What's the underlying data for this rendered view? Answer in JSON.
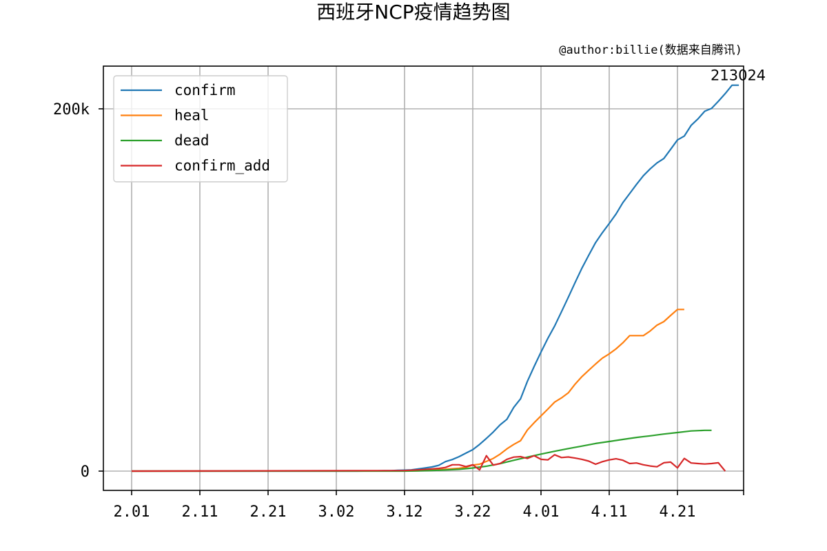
{
  "chart_data": {
    "type": "line",
    "title": "西班牙NCP疫情趋势图",
    "subtitle": "@author:billie(数据来自腾讯)",
    "xlabel": "",
    "ylabel": "",
    "x_start": "2.01",
    "x_tick_labels": [
      "2.01",
      "2.11",
      "2.21",
      "3.02",
      "3.12",
      "3.22",
      "4.01",
      "4.11",
      "4.21"
    ],
    "y_ticks": [
      {
        "value": 0,
        "label": "0"
      },
      {
        "value": 200000,
        "label": "200k"
      }
    ],
    "ylim": [
      -10650,
      223700
    ],
    "grid": true,
    "legend_position": "top-left",
    "annotation": {
      "text": "213024",
      "value": 213024
    },
    "series": [
      {
        "name": "confirm",
        "color": "#1f77b4",
        "points": [
          [
            0,
            0
          ],
          [
            33,
            0
          ],
          [
            35,
            84
          ],
          [
            36,
            165
          ],
          [
            37,
            228
          ],
          [
            38,
            282
          ],
          [
            39,
            401
          ],
          [
            40,
            525
          ],
          [
            41,
            674
          ],
          [
            42,
            1231
          ],
          [
            43,
            1695
          ],
          [
            44,
            2277
          ],
          [
            45,
            3146
          ],
          [
            46,
            5232
          ],
          [
            47,
            6391
          ],
          [
            48,
            7988
          ],
          [
            49,
            9942
          ],
          [
            50,
            11826
          ],
          [
            51,
            14769
          ],
          [
            52,
            18077
          ],
          [
            53,
            21571
          ],
          [
            54,
            25496
          ],
          [
            55,
            28603
          ],
          [
            56,
            35136
          ],
          [
            57,
            39885
          ],
          [
            58,
            49515
          ],
          [
            59,
            57786
          ],
          [
            60,
            65719
          ],
          [
            61,
            73235
          ],
          [
            62,
            80110
          ],
          [
            63,
            87956
          ],
          [
            64,
            95923
          ],
          [
            65,
            104118
          ],
          [
            66,
            112065
          ],
          [
            67,
            119199
          ],
          [
            68,
            126168
          ],
          [
            69,
            131646
          ],
          [
            70,
            136675
          ],
          [
            71,
            141942
          ],
          [
            72,
            148220
          ],
          [
            73,
            153222
          ],
          [
            74,
            158273
          ],
          [
            75,
            163027
          ],
          [
            76,
            166831
          ],
          [
            77,
            170099
          ],
          [
            78,
            172541
          ],
          [
            79,
            177644
          ],
          [
            80,
            182816
          ],
          [
            81,
            184948
          ],
          [
            82,
            190839
          ],
          [
            83,
            194416
          ],
          [
            84,
            198674
          ],
          [
            85,
            200210
          ],
          [
            86,
            204178
          ],
          [
            87,
            208389
          ],
          [
            88,
            213024
          ],
          [
            89,
            213024
          ]
        ]
      },
      {
        "name": "heal",
        "color": "#ff7f0e",
        "points": [
          [
            0,
            0
          ],
          [
            40,
            30
          ],
          [
            42,
            183
          ],
          [
            44,
            517
          ],
          [
            46,
            1028
          ],
          [
            48,
            1585
          ],
          [
            49,
            2125
          ],
          [
            50,
            3355
          ],
          [
            51,
            3794
          ],
          [
            52,
            5367
          ],
          [
            53,
            7015
          ],
          [
            54,
            9357
          ],
          [
            55,
            12285
          ],
          [
            56,
            14709
          ],
          [
            57,
            16780
          ],
          [
            58,
            22647
          ],
          [
            59,
            26743
          ],
          [
            60,
            30513
          ],
          [
            61,
            34219
          ],
          [
            62,
            38080
          ],
          [
            63,
            40437
          ],
          [
            64,
            43208
          ],
          [
            65,
            48021
          ],
          [
            66,
            52165
          ],
          [
            67,
            55668
          ],
          [
            68,
            59109
          ],
          [
            69,
            62391
          ],
          [
            70,
            64727
          ],
          [
            71,
            67504
          ],
          [
            72,
            70853
          ],
          [
            73,
            74797
          ],
          [
            74,
            74797
          ],
          [
            75,
            74797
          ],
          [
            76,
            77357
          ],
          [
            77,
            80587
          ],
          [
            78,
            82514
          ],
          [
            79,
            85915
          ],
          [
            80,
            89250
          ],
          [
            81,
            89250
          ]
        ]
      },
      {
        "name": "dead",
        "color": "#2ca02c",
        "points": [
          [
            0,
            0
          ],
          [
            40,
            17
          ],
          [
            42,
            136
          ],
          [
            44,
            297
          ],
          [
            46,
            598
          ],
          [
            48,
            1002
          ],
          [
            50,
            1720
          ],
          [
            52,
            2696
          ],
          [
            54,
            4089
          ],
          [
            56,
            5982
          ],
          [
            58,
            7716
          ],
          [
            60,
            9387
          ],
          [
            62,
            10935
          ],
          [
            64,
            12418
          ],
          [
            66,
            13798
          ],
          [
            68,
            15238
          ],
          [
            70,
            16353
          ],
          [
            72,
            17489
          ],
          [
            74,
            18579
          ],
          [
            76,
            19478
          ],
          [
            78,
            20453
          ],
          [
            80,
            21282
          ],
          [
            82,
            22157
          ],
          [
            84,
            22524
          ],
          [
            85,
            22524
          ]
        ]
      },
      {
        "name": "confirm_add",
        "color": "#d62728",
        "points": [
          [
            0,
            0
          ],
          [
            40,
            300
          ],
          [
            42,
            700
          ],
          [
            44,
            1200
          ],
          [
            45,
            1500
          ],
          [
            46,
            2000
          ],
          [
            47,
            3500
          ],
          [
            48,
            3500
          ],
          [
            49,
            2500
          ],
          [
            50,
            3500
          ],
          [
            51,
            700
          ],
          [
            52,
            8500
          ],
          [
            53,
            3300
          ],
          [
            54,
            4200
          ],
          [
            55,
            6500
          ],
          [
            56,
            7700
          ],
          [
            57,
            8000
          ],
          [
            58,
            7000
          ],
          [
            59,
            8500
          ],
          [
            60,
            6500
          ],
          [
            61,
            6200
          ],
          [
            62,
            9000
          ],
          [
            63,
            7500
          ],
          [
            64,
            7800
          ],
          [
            65,
            7200
          ],
          [
            66,
            6500
          ],
          [
            67,
            5500
          ],
          [
            68,
            3800
          ],
          [
            69,
            5200
          ],
          [
            70,
            6200
          ],
          [
            71,
            6800
          ],
          [
            72,
            6000
          ],
          [
            73,
            4200
          ],
          [
            74,
            4500
          ],
          [
            75,
            3500
          ],
          [
            76,
            2800
          ],
          [
            77,
            2400
          ],
          [
            78,
            4600
          ],
          [
            79,
            5000
          ],
          [
            80,
            1800
          ],
          [
            81,
            7000
          ],
          [
            82,
            4500
          ],
          [
            83,
            4200
          ],
          [
            84,
            3900
          ],
          [
            85,
            4200
          ],
          [
            86,
            4600
          ],
          [
            87,
            0
          ]
        ]
      }
    ]
  }
}
